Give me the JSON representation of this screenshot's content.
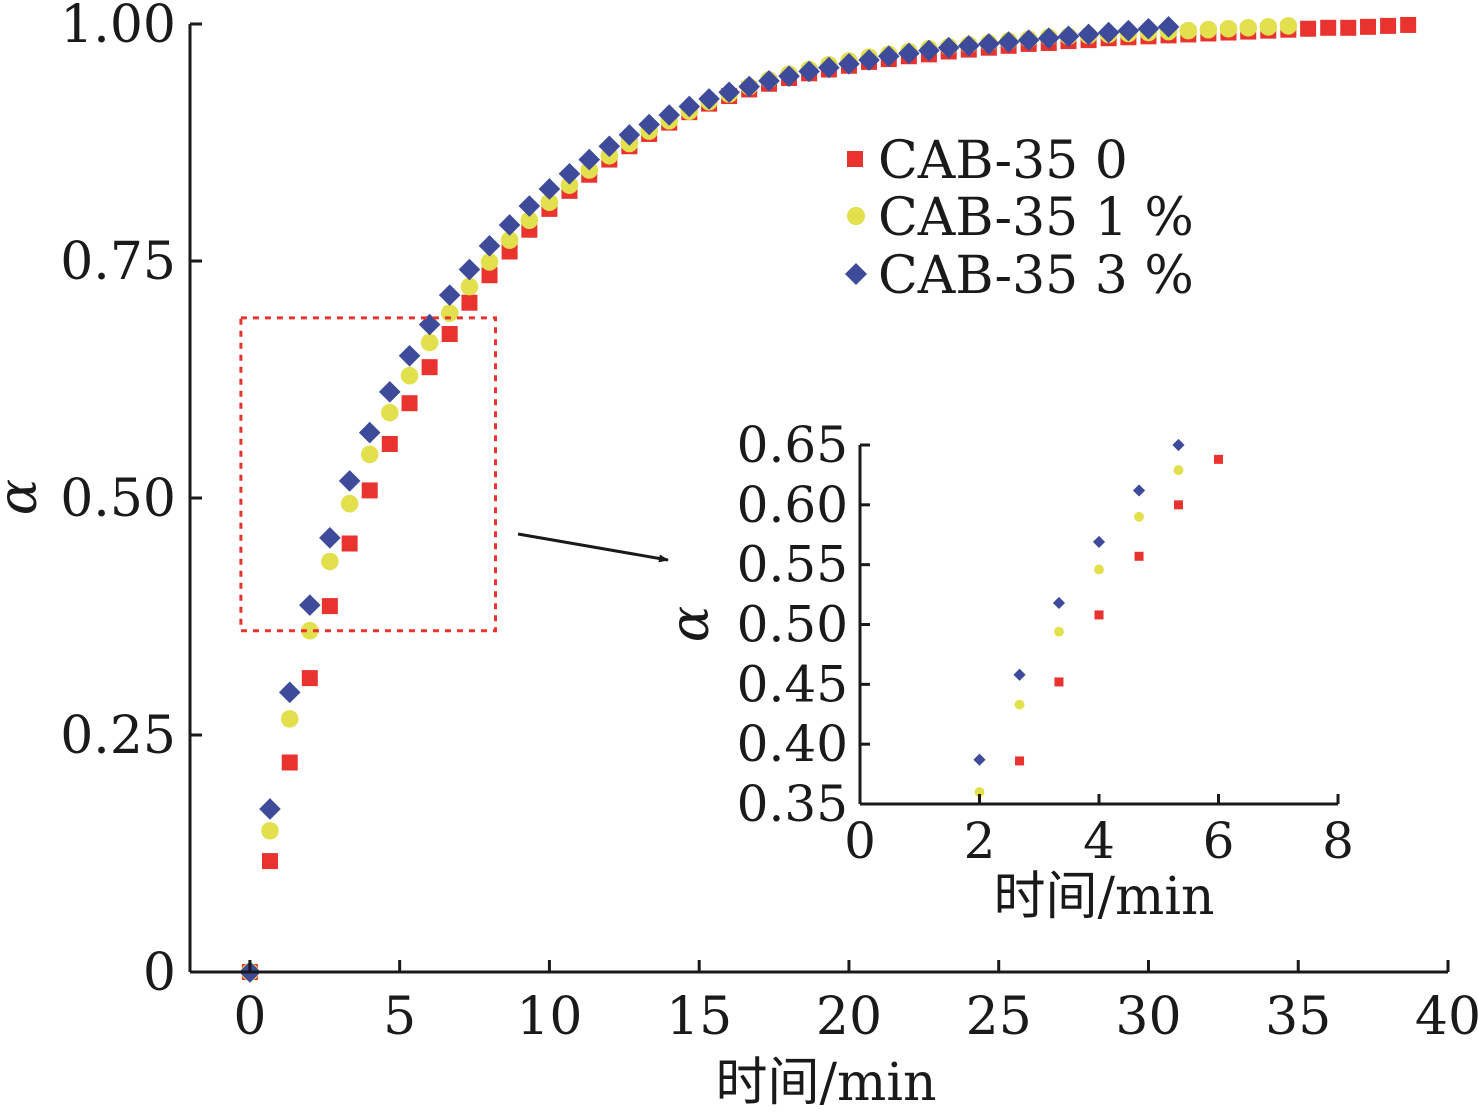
{
  "chart_data": [
    {
      "type": "scatter",
      "xlabel": "时间/min",
      "ylabel": "α",
      "xlim": [
        -2,
        40
      ],
      "ylim": [
        0,
        1
      ],
      "xticks": [
        0,
        5,
        10,
        15,
        20,
        25,
        30,
        35,
        40
      ],
      "yticks": [
        0,
        0.25,
        0.5,
        0.75,
        1.0
      ],
      "xtick_labels": [
        "0",
        "5",
        "10",
        "15",
        "20",
        "25",
        "30",
        "35",
        "40"
      ],
      "ytick_labels": [
        "0",
        "0.25",
        "0.50",
        "0.75",
        "1.00"
      ],
      "grid": false,
      "legend_position": "upper-right",
      "highlight_box": {
        "x": [
          -0.3,
          8.2
        ],
        "y": [
          0.36,
          0.69
        ],
        "color": "#e8332f"
      },
      "series": [
        {
          "name": "CAB-35 0",
          "marker": "square",
          "color": "#e8332f",
          "x": [
            0,
            0.67,
            1.33,
            2,
            2.67,
            3.33,
            4,
            4.67,
            5.33,
            6,
            6.67,
            7.33,
            8,
            8.67,
            9.33,
            10,
            10.67,
            11.33,
            12,
            12.67,
            13.33,
            14,
            14.67,
            15.33,
            16,
            16.67,
            17.33,
            18,
            18.67,
            19.33,
            20,
            20.67,
            21.33,
            22,
            22.67,
            23.33,
            24,
            24.67,
            25.33,
            26,
            26.67,
            27.33,
            28,
            28.67,
            29.33,
            30,
            30.67,
            31.33,
            32,
            32.67,
            33.33,
            34,
            34.67,
            35.33,
            36,
            36.67,
            37.33,
            38,
            38.67
          ],
          "y": [
            0,
            0.117,
            0.221,
            0.31,
            0.386,
            0.452,
            0.508,
            0.557,
            0.6,
            0.638,
            0.673,
            0.706,
            0.735,
            0.76,
            0.783,
            0.805,
            0.824,
            0.841,
            0.857,
            0.871,
            0.884,
            0.896,
            0.907,
            0.916,
            0.924,
            0.931,
            0.937,
            0.943,
            0.948,
            0.952,
            0.956,
            0.96,
            0.963,
            0.966,
            0.968,
            0.971,
            0.973,
            0.975,
            0.977,
            0.979,
            0.98,
            0.982,
            0.983,
            0.985,
            0.986,
            0.987,
            0.988,
            0.989,
            0.99,
            0.991,
            0.992,
            0.993,
            0.994,
            0.995,
            0.996,
            0.996,
            0.997,
            0.998,
            0.999
          ]
        },
        {
          "name": "CAB-35 1 %",
          "marker": "circle",
          "color": "#e3e04e",
          "x": [
            0,
            0.67,
            1.33,
            2,
            2.67,
            3.33,
            4,
            4.67,
            5.33,
            6,
            6.67,
            7.33,
            8,
            8.67,
            9.33,
            10,
            10.67,
            11.33,
            12,
            12.67,
            13.33,
            14,
            14.67,
            15.33,
            16,
            16.67,
            17.33,
            18,
            18.67,
            19.33,
            20,
            20.67,
            21.33,
            22,
            22.67,
            23.33,
            24,
            24.67,
            25.33,
            26,
            26.67,
            27.33,
            28,
            28.67,
            29.33,
            30,
            30.67,
            31.33,
            32,
            32.67,
            33.33,
            34,
            34.67
          ],
          "y": [
            0,
            0.149,
            0.267,
            0.36,
            0.433,
            0.494,
            0.546,
            0.59,
            0.629,
            0.664,
            0.695,
            0.723,
            0.749,
            0.772,
            0.793,
            0.812,
            0.83,
            0.846,
            0.861,
            0.874,
            0.887,
            0.898,
            0.908,
            0.918,
            0.926,
            0.934,
            0.941,
            0.947,
            0.952,
            0.957,
            0.961,
            0.965,
            0.968,
            0.971,
            0.974,
            0.976,
            0.978,
            0.98,
            0.982,
            0.984,
            0.986,
            0.987,
            0.988,
            0.989,
            0.99,
            0.991,
            0.992,
            0.993,
            0.994,
            0.995,
            0.996,
            0.997,
            0.998
          ]
        },
        {
          "name": "CAB-35 3 %",
          "marker": "diamond",
          "color": "#3e4b9a",
          "x": [
            0,
            0.67,
            1.33,
            2,
            2.67,
            3.33,
            4,
            4.67,
            5.33,
            6,
            6.67,
            7.33,
            8,
            8.67,
            9.33,
            10,
            10.67,
            11.33,
            12,
            12.67,
            13.33,
            14,
            14.67,
            15.33,
            16,
            16.67,
            17.33,
            18,
            18.67,
            19.33,
            20,
            20.67,
            21.33,
            22,
            22.67,
            23.33,
            24,
            24.67,
            25.33,
            26,
            26.67,
            27.33,
            28,
            28.67,
            29.33,
            30,
            30.67
          ],
          "y": [
            0,
            0.172,
            0.295,
            0.387,
            0.458,
            0.518,
            0.569,
            0.612,
            0.65,
            0.683,
            0.714,
            0.741,
            0.766,
            0.788,
            0.808,
            0.826,
            0.842,
            0.857,
            0.871,
            0.883,
            0.894,
            0.904,
            0.913,
            0.921,
            0.928,
            0.934,
            0.94,
            0.945,
            0.95,
            0.954,
            0.958,
            0.962,
            0.966,
            0.969,
            0.972,
            0.975,
            0.977,
            0.979,
            0.981,
            0.983,
            0.985,
            0.987,
            0.989,
            0.991,
            0.993,
            0.995,
            0.997
          ]
        }
      ]
    },
    {
      "type": "scatter",
      "xlabel": "时间/min",
      "ylabel": "α",
      "xlim": [
        0,
        8
      ],
      "ylim": [
        0.35,
        0.65
      ],
      "xticks": [
        0,
        2,
        4,
        6,
        8
      ],
      "yticks": [
        0.35,
        0.4,
        0.45,
        0.5,
        0.55,
        0.6,
        0.65
      ],
      "xtick_labels": [
        "0",
        "2",
        "4",
        "6",
        "8"
      ],
      "ytick_labels": [
        "0.35",
        "0.40",
        "0.45",
        "0.50",
        "0.55",
        "0.60",
        "0.65"
      ],
      "grid": false,
      "series": [
        {
          "marker": "square",
          "color": "#e8332f",
          "x": [
            2.67,
            3.33,
            4,
            4.67,
            5.33,
            6
          ],
          "y": [
            0.386,
            0.452,
            0.508,
            0.557,
            0.6,
            0.638
          ]
        },
        {
          "marker": "circle",
          "color": "#e3e04e",
          "x": [
            2,
            2.67,
            3.33,
            4,
            4.67,
            5.33
          ],
          "y": [
            0.36,
            0.433,
            0.494,
            0.546,
            0.59,
            0.629
          ]
        },
        {
          "marker": "diamond",
          "color": "#3e4b9a",
          "x": [
            2,
            2.67,
            3.33,
            4,
            4.67,
            5.33
          ],
          "y": [
            0.387,
            0.458,
            0.518,
            0.569,
            0.612,
            0.65
          ]
        }
      ]
    }
  ]
}
